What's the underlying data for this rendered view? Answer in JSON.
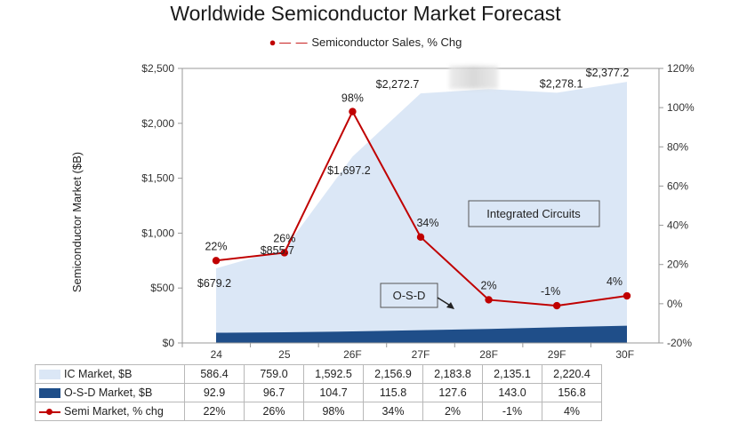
{
  "chart_data": {
    "type": "area",
    "title": "Worldwide Semiconductor Market Forecast",
    "legend": "Semiconductor Sales, % Chg",
    "legend_position": "top",
    "ylabel": "Semiconductor Market ($B)",
    "ylim": [
      0,
      2500
    ],
    "y_ticks": [
      "$2,500",
      "$2,000",
      "$1,500",
      "$1,000",
      "$500",
      "$0"
    ],
    "y2lim": [
      -20,
      120
    ],
    "y2_ticks": [
      "120%",
      "100%",
      "80%",
      "60%",
      "40%",
      "20%",
      "0%",
      "-20%"
    ],
    "categories": [
      "24",
      "25",
      "26F",
      "27F",
      "28F",
      "29F",
      "30F"
    ],
    "series": [
      {
        "name": "IC Market, $B",
        "values": [
          586.4,
          759.0,
          1592.5,
          2156.9,
          2183.8,
          2135.1,
          2220.4
        ],
        "color": "#dbe7f6"
      },
      {
        "name": "O-S-D Market, $B",
        "values": [
          92.9,
          96.7,
          104.7,
          115.8,
          127.6,
          143.0,
          156.8
        ],
        "color": "#1f4e89"
      },
      {
        "name": "Semi Market, % chg",
        "values": [
          22,
          26,
          98,
          34,
          2,
          -1,
          4
        ],
        "color": "#c00000",
        "axis": "right"
      }
    ],
    "totals": [
      679.2,
      855.7,
      1697.2,
      2272.7,
      null,
      2278.1,
      2377.2
    ],
    "total_labels": [
      "$679.2",
      "$855.7",
      "$1,697.2",
      "$2,272.7",
      "",
      "$2,278.1",
      "$2,377.2"
    ],
    "pct_labels": [
      "22%",
      "26%",
      "98%",
      "34%",
      "2%",
      "-1%",
      "4%"
    ],
    "annotations": [
      "Integrated Circuits",
      "O-S-D"
    ],
    "grid": false
  },
  "table": {
    "rows": [
      {
        "label": "IC Market, $B",
        "values": [
          "586.4",
          "759.0",
          "1,592.5",
          "2,156.9",
          "2,183.8",
          "2,135.1",
          "2,220.4"
        ]
      },
      {
        "label": "O-S-D Market, $B",
        "values": [
          "92.9",
          "96.7",
          "104.7",
          "115.8",
          "127.6",
          "143.0",
          "156.8"
        ]
      },
      {
        "label": "Semi Market, % chg",
        "values": [
          "22%",
          "26%",
          "98%",
          "34%",
          "2%",
          "-1%",
          "4%"
        ]
      }
    ]
  }
}
